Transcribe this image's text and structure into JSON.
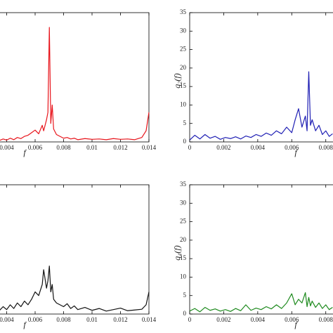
{
  "chart_data": [
    {
      "type": "line",
      "xlabel": "f",
      "color": "#e8141b",
      "xlim": [
        0,
        0.014
      ],
      "ylim": [
        0,
        35
      ],
      "xticks": [
        0.004,
        0.006,
        0.008,
        0.01,
        0.012,
        0.014
      ],
      "x": [
        0.0035,
        0.00375,
        0.004,
        0.00425,
        0.0045,
        0.00475,
        0.005,
        0.00525,
        0.0055,
        0.00575,
        0.006,
        0.00625,
        0.0065,
        0.0066,
        0.0068,
        0.0069,
        0.007,
        0.0071,
        0.0072,
        0.0073,
        0.0075,
        0.00775,
        0.008,
        0.00825,
        0.0085,
        0.00875,
        0.009,
        0.0095,
        0.01,
        0.0105,
        0.011,
        0.0115,
        0.012,
        0.0125,
        0.013,
        0.0135,
        0.0138,
        0.014
      ],
      "values": [
        0.4,
        0.8,
        0.5,
        1.0,
        0.6,
        1.2,
        0.9,
        1.5,
        1.8,
        2.5,
        3.2,
        2.2,
        4.5,
        3.0,
        6.0,
        8.0,
        31.0,
        5.0,
        10.0,
        3.5,
        2.0,
        1.5,
        1.0,
        1.2,
        0.8,
        1.0,
        0.6,
        0.9,
        0.7,
        0.8,
        0.6,
        0.9,
        0.7,
        0.8,
        0.6,
        1.2,
        3.0,
        8.0
      ]
    },
    {
      "type": "line",
      "xlabel": "f",
      "ylabel": "q₂(f)",
      "color": "#1f1fb4",
      "xlim": [
        0,
        0.014
      ],
      "ylim": [
        0,
        35
      ],
      "xticks": [
        0,
        0.002,
        0.004,
        0.006,
        0.008
      ],
      "yticks": [
        0,
        5,
        10,
        15,
        20,
        25,
        30,
        35
      ],
      "x": [
        0,
        0.0003,
        0.0006,
        0.0009,
        0.0012,
        0.0015,
        0.0018,
        0.0021,
        0.0024,
        0.0027,
        0.003,
        0.0033,
        0.0036,
        0.0039,
        0.0042,
        0.0045,
        0.0048,
        0.0051,
        0.0054,
        0.0057,
        0.006,
        0.0062,
        0.0064,
        0.0066,
        0.0068,
        0.0069,
        0.007,
        0.0071,
        0.0072,
        0.0074,
        0.0076,
        0.0078,
        0.008,
        0.0082,
        0.0084
      ],
      "values": [
        0.5,
        1.8,
        0.8,
        2.0,
        1.0,
        1.5,
        0.7,
        1.2,
        0.9,
        1.4,
        0.8,
        1.6,
        1.2,
        2.0,
        1.5,
        2.4,
        1.8,
        3.0,
        2.2,
        4.0,
        2.5,
        6.0,
        9.0,
        4.0,
        7.0,
        3.0,
        19.0,
        4.5,
        6.0,
        3.0,
        4.5,
        2.0,
        3.0,
        1.5,
        2.2
      ]
    },
    {
      "type": "line",
      "xlabel": "f",
      "color": "#111111",
      "xlim": [
        0,
        0.014
      ],
      "ylim": [
        0,
        35
      ],
      "xticks": [
        0.004,
        0.006,
        0.008,
        0.01,
        0.012,
        0.014
      ],
      "x": [
        0.0035,
        0.00375,
        0.004,
        0.00425,
        0.0045,
        0.00475,
        0.005,
        0.00525,
        0.0055,
        0.00575,
        0.006,
        0.00625,
        0.0065,
        0.0066,
        0.0068,
        0.0069,
        0.007,
        0.0071,
        0.0072,
        0.0073,
        0.0075,
        0.00775,
        0.008,
        0.00825,
        0.0085,
        0.00875,
        0.009,
        0.0095,
        0.01,
        0.0105,
        0.011,
        0.0115,
        0.012,
        0.0125,
        0.013,
        0.0135,
        0.0138,
        0.014
      ],
      "values": [
        1.0,
        2.0,
        1.2,
        2.5,
        1.5,
        3.0,
        2.0,
        3.5,
        2.5,
        4.0,
        6.0,
        5.0,
        8.0,
        12.0,
        7.0,
        9.0,
        13.0,
        6.0,
        8.0,
        4.0,
        3.0,
        2.5,
        2.0,
        2.8,
        1.5,
        2.2,
        1.2,
        1.8,
        1.0,
        1.5,
        0.8,
        1.2,
        1.6,
        0.9,
        1.1,
        1.3,
        2.5,
        6.0
      ]
    },
    {
      "type": "line",
      "xlabel": "f",
      "ylabel": "q₄(f)",
      "color": "#1e8a1e",
      "xlim": [
        0,
        0.014
      ],
      "ylim": [
        0,
        35
      ],
      "xticks": [
        0,
        0.002,
        0.004,
        0.006,
        0.008
      ],
      "yticks": [
        0,
        5,
        10,
        15,
        20,
        25,
        30,
        35
      ],
      "x": [
        0,
        0.0003,
        0.0006,
        0.0009,
        0.0012,
        0.0015,
        0.0018,
        0.0021,
        0.0024,
        0.0027,
        0.003,
        0.0033,
        0.0036,
        0.0039,
        0.0042,
        0.0045,
        0.0048,
        0.0051,
        0.0054,
        0.0057,
        0.006,
        0.0062,
        0.0064,
        0.0066,
        0.0068,
        0.0069,
        0.007,
        0.0071,
        0.0072,
        0.0074,
        0.0076,
        0.0078,
        0.008,
        0.0082,
        0.0084
      ],
      "values": [
        0.8,
        1.5,
        0.6,
        1.8,
        1.0,
        1.4,
        0.8,
        1.2,
        0.7,
        1.5,
        0.9,
        2.5,
        1.0,
        1.6,
        1.2,
        2.0,
        1.4,
        2.5,
        1.5,
        3.0,
        5.5,
        2.5,
        4.0,
        3.0,
        5.8,
        2.0,
        4.5,
        2.2,
        3.5,
        1.8,
        3.0,
        1.5,
        2.5,
        1.2,
        1.8
      ]
    }
  ]
}
